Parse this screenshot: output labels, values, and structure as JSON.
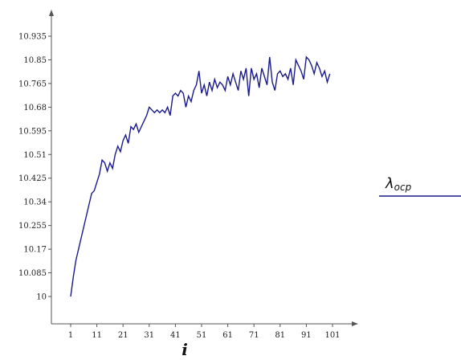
{
  "chart_data": {
    "type": "line",
    "xlabel": "i",
    "ylabel": "",
    "xlim": [
      1,
      101
    ],
    "ylim": [
      10,
      10.935
    ],
    "xticks": [
      1,
      11,
      21,
      31,
      41,
      51,
      61,
      71,
      81,
      91,
      101
    ],
    "yticks": [
      10,
      10.085,
      10.17,
      10.255,
      10.34,
      10.425,
      10.51,
      10.595,
      10.68,
      10.765,
      10.85,
      10.935
    ],
    "ytick_labels": [
      "10",
      "10.085",
      "10.17",
      "10.255",
      "10.34",
      "10.425",
      "10.51",
      "10.595",
      "10.68",
      "10.765",
      "10.85",
      "10.935"
    ],
    "legend": {
      "position": "right",
      "label_main": "λ",
      "label_sub": "ocp"
    },
    "series": [
      {
        "color": "#1a1a8c",
        "x": [
          1,
          2,
          3,
          4,
          5,
          6,
          7,
          8,
          9,
          10,
          11,
          12,
          13,
          14,
          15,
          16,
          17,
          18,
          19,
          20,
          21,
          22,
          23,
          24,
          25,
          26,
          27,
          28,
          29,
          30,
          31,
          32,
          33,
          34,
          35,
          36,
          37,
          38,
          39,
          40,
          41,
          42,
          43,
          44,
          45,
          46,
          47,
          48,
          49,
          50,
          51,
          52,
          53,
          54,
          55,
          56,
          57,
          58,
          59,
          60,
          61,
          62,
          63,
          64,
          65,
          66,
          67,
          68,
          69,
          70,
          71,
          72,
          73,
          74,
          75,
          76,
          77,
          78,
          79,
          80,
          81,
          82,
          83,
          84,
          85,
          86,
          87,
          88,
          89,
          90,
          91,
          92,
          93,
          94,
          95,
          96,
          97,
          98,
          99,
          100
        ],
        "values": [
          10.0,
          10.07,
          10.13,
          10.17,
          10.21,
          10.25,
          10.29,
          10.33,
          10.37,
          10.38,
          10.41,
          10.44,
          10.49,
          10.48,
          10.45,
          10.48,
          10.46,
          10.51,
          10.54,
          10.52,
          10.56,
          10.58,
          10.55,
          10.61,
          10.6,
          10.62,
          10.59,
          10.61,
          10.63,
          10.65,
          10.68,
          10.67,
          10.66,
          10.67,
          10.66,
          10.67,
          10.66,
          10.68,
          10.65,
          10.72,
          10.73,
          10.72,
          10.74,
          10.73,
          10.68,
          10.72,
          10.7,
          10.74,
          10.76,
          10.81,
          10.73,
          10.76,
          10.72,
          10.77,
          10.74,
          10.78,
          10.75,
          10.77,
          10.76,
          10.74,
          10.79,
          10.76,
          10.8,
          10.77,
          10.74,
          10.81,
          10.78,
          10.82,
          10.72,
          10.82,
          10.78,
          10.8,
          10.75,
          10.82,
          10.79,
          10.76,
          10.86,
          10.77,
          10.74,
          10.8,
          10.81,
          10.79,
          10.8,
          10.78,
          10.82,
          10.76,
          10.85,
          10.83,
          10.81,
          10.78,
          10.86,
          10.85,
          10.83,
          10.8,
          10.84,
          10.82,
          10.79,
          10.81,
          10.77,
          10.8
        ]
      }
    ]
  }
}
